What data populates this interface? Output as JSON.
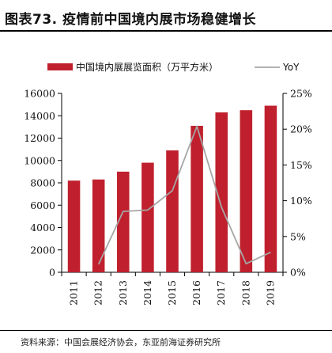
{
  "header": {
    "title": "图表73.  疫情前中国境内展市场稳健增长"
  },
  "footer": {
    "source": "资料来源：中国会展经济协会，东亚前海证券研究所"
  },
  "chart_data": {
    "type": "bar",
    "categories": [
      "2011",
      "2012",
      "2013",
      "2014",
      "2015",
      "2016",
      "2017",
      "2018",
      "2019"
    ],
    "series": [
      {
        "name": "中国境内展展览面积（万平方米）",
        "type": "bar",
        "axis": "left",
        "color": "#c0202d",
        "values": [
          8200,
          8300,
          9000,
          9800,
          10900,
          13100,
          14300,
          14500,
          14900
        ]
      },
      {
        "name": "YoY",
        "type": "line",
        "axis": "right",
        "color": "#a6a6a6",
        "values": [
          null,
          1.1,
          8.5,
          8.7,
          11.4,
          20.4,
          9.1,
          1.2,
          2.8
        ]
      }
    ],
    "y_left": {
      "min": 0,
      "max": 16000,
      "ticks": [
        0,
        2000,
        4000,
        6000,
        8000,
        10000,
        12000,
        14000,
        16000
      ]
    },
    "y_right": {
      "min": 0,
      "max": 25,
      "ticks": [
        "0%",
        "5%",
        "10%",
        "15%",
        "20%",
        "25%"
      ]
    },
    "legend_position": "top"
  }
}
